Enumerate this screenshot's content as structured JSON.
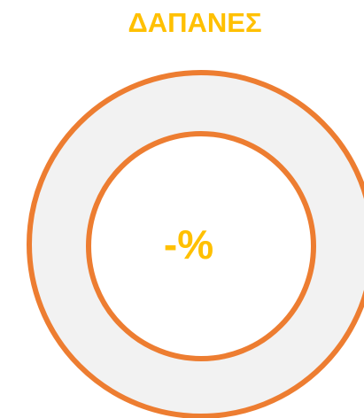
{
  "title": "ΔΑΠΑΝΕΣ",
  "center_label": "-%"
}
